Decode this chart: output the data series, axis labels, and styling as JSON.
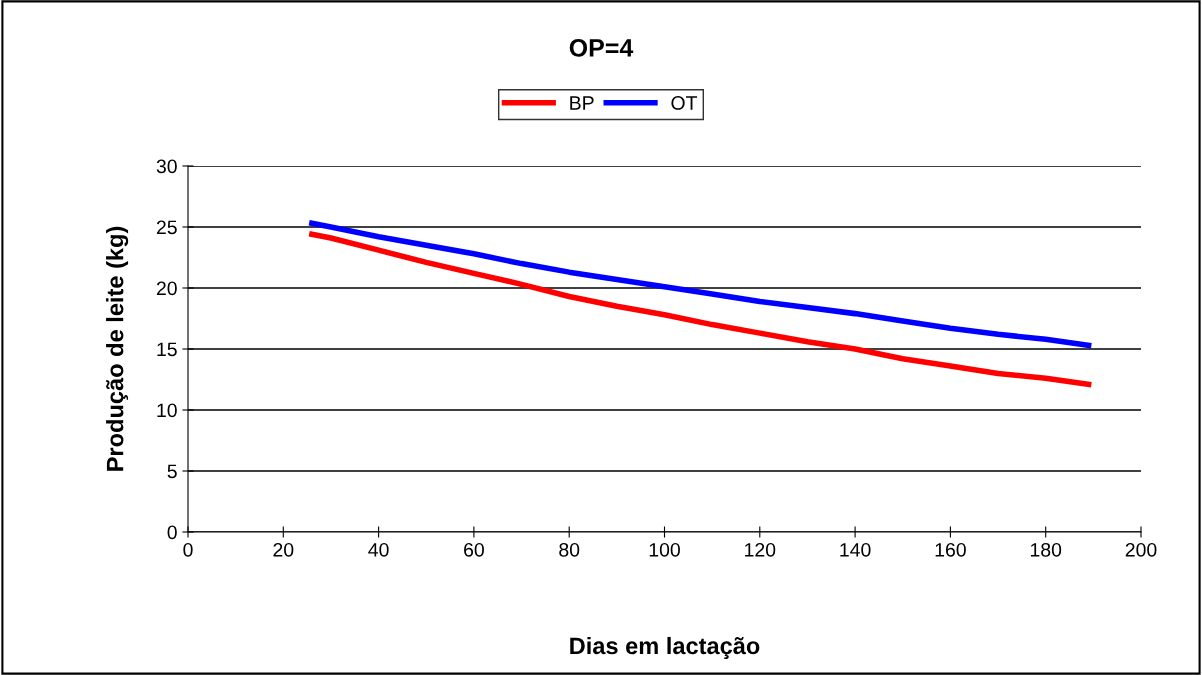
{
  "chart_data": {
    "type": "line",
    "title": "OP=4",
    "xlabel": "Dias em lactação",
    "ylabel": "Produção de leite (kg)",
    "xlim": [
      0,
      200
    ],
    "xticks": [
      0,
      20,
      40,
      60,
      80,
      100,
      120,
      140,
      160,
      180,
      200
    ],
    "ylim": [
      0,
      30
    ],
    "yticks": [
      0,
      5,
      10,
      15,
      20,
      25,
      30
    ],
    "grid": "y",
    "legend": "top",
    "marker": "none",
    "line_style": "solid",
    "x": [
      26,
      30,
      40,
      50,
      60,
      70,
      80,
      90,
      100,
      110,
      120,
      130,
      140,
      150,
      160,
      170,
      180,
      189
    ],
    "series": [
      {
        "name": "BP",
        "color": "#ff0000",
        "values": [
          24.4,
          24.1,
          23.1,
          22.1,
          21.2,
          20.3,
          19.3,
          18.5,
          17.8,
          17.0,
          16.3,
          15.6,
          15.0,
          14.2,
          13.6,
          13.0,
          12.6,
          12.1
        ]
      },
      {
        "name": "OT",
        "color": "#0000ff",
        "values": [
          25.3,
          25.0,
          24.2,
          23.5,
          22.8,
          22.0,
          21.3,
          20.7,
          20.1,
          19.5,
          18.9,
          18.4,
          17.9,
          17.3,
          16.7,
          16.2,
          15.8,
          15.3
        ]
      }
    ]
  }
}
